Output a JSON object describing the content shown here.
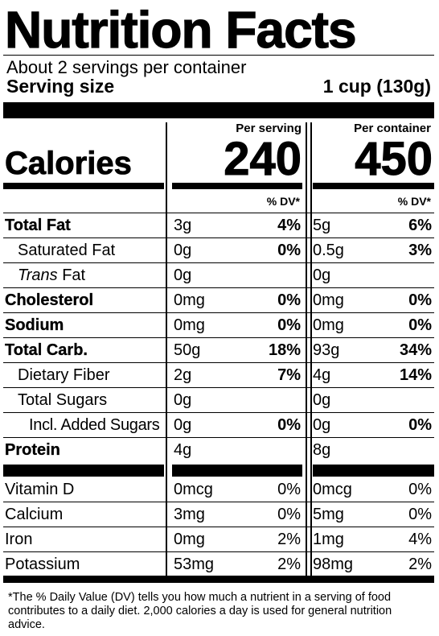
{
  "label": {
    "title": "Nutrition Facts",
    "servings": "About 2 servings per container",
    "serving_size_label": "Serving size",
    "serving_size_value": "1 cup (130g)",
    "col_header_serving": "Per serving",
    "col_header_container": "Per container",
    "calories_label": "Calories",
    "calories_serving": "240",
    "calories_container": "450",
    "dv_header": "% DV*",
    "rows": [
      {
        "name": "Total Fat",
        "amt1": "3g",
        "dv1": "4%",
        "amt2": "5g",
        "dv2": "6%"
      },
      {
        "name": "Saturated Fat",
        "amt1": "0g",
        "dv1": "0%",
        "amt2": "0.5g",
        "dv2": "3%"
      },
      {
        "name_italic": "Trans",
        "name_rest": " Fat",
        "amt1": "0g",
        "dv1": "",
        "amt2": "0g",
        "dv2": ""
      },
      {
        "name": "Cholesterol",
        "amt1": "0mg",
        "dv1": "0%",
        "amt2": "0mg",
        "dv2": "0%"
      },
      {
        "name": "Sodium",
        "amt1": "0mg",
        "dv1": "0%",
        "amt2": "0mg",
        "dv2": "0%"
      },
      {
        "name": "Total Carb.",
        "amt1": "50g",
        "dv1": "18%",
        "amt2": "93g",
        "dv2": "34%"
      },
      {
        "name": "Dietary Fiber",
        "amt1": "2g",
        "dv1": "7%",
        "amt2": "4g",
        "dv2": "14%"
      },
      {
        "name": "Total Sugars",
        "amt1": "0g",
        "dv1": "",
        "amt2": "0g",
        "dv2": ""
      },
      {
        "name": "Incl. Added Sugars",
        "amt1": "0g",
        "dv1": "0%",
        "amt2": "0g",
        "dv2": "0%"
      },
      {
        "name": "Protein",
        "amt1": "4g",
        "dv1": "",
        "amt2": "8g",
        "dv2": ""
      }
    ],
    "micros": [
      {
        "name": "Vitamin D",
        "amt1": "0mcg",
        "dv1": "0%",
        "amt2": "0mcg",
        "dv2": "0%"
      },
      {
        "name": "Calcium",
        "amt1": "3mg",
        "dv1": "0%",
        "amt2": "5mg",
        "dv2": "0%"
      },
      {
        "name": "Iron",
        "amt1": "0mg",
        "dv1": "2%",
        "amt2": "1mg",
        "dv2": "4%"
      },
      {
        "name": "Potassium",
        "amt1": "53mg",
        "dv1": "2%",
        "amt2": "98mg",
        "dv2": "2%"
      }
    ],
    "footnote": "*The % Daily Value (DV) tells you how much a nutrient in a serving of food contributes to a daily diet. 2,000 calories a day is used for general nutrition advice."
  }
}
